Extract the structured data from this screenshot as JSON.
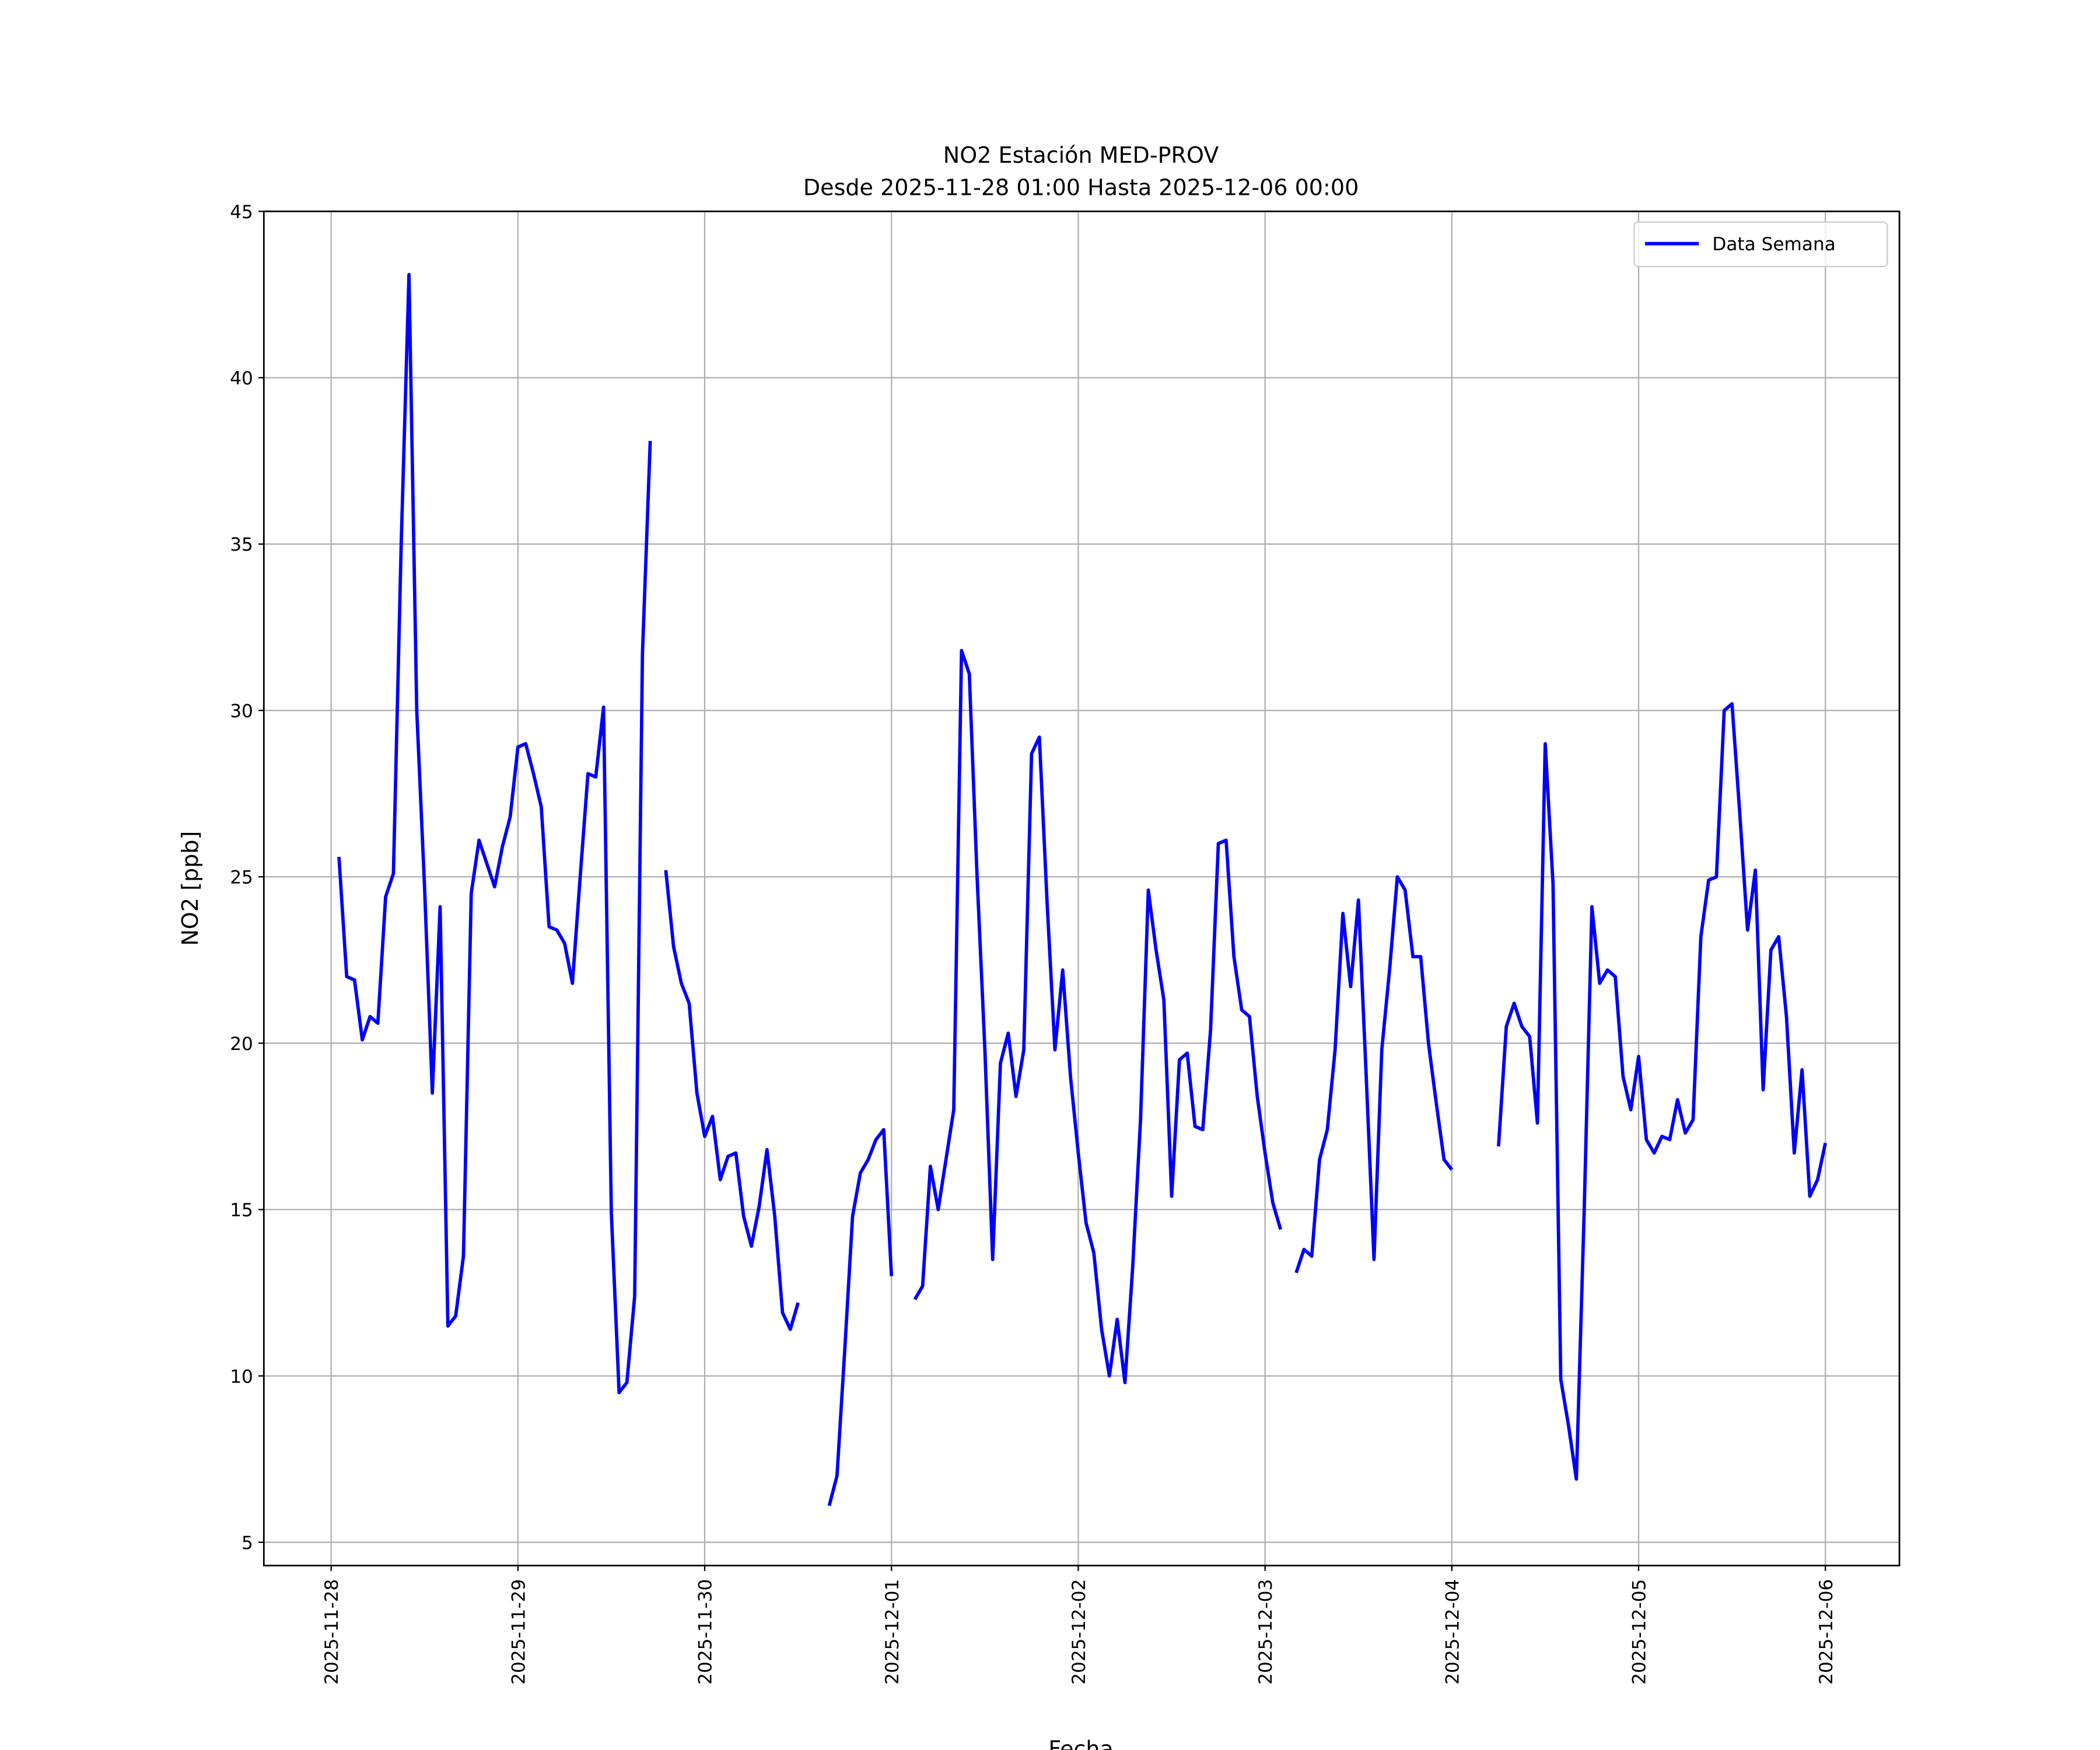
{
  "chart_data": {
    "type": "line",
    "title": [
      "NO2 Estación MED-PROV",
      "Desde 2025-11-28 01:00 Hasta 2025-12-06 00:00"
    ],
    "xlabel": "Fecha",
    "ylabel": "NO2 [ppb]",
    "ylim": [
      4.3,
      45
    ],
    "xlim": [
      "2025-11-27 20:00",
      "2025-12-06 13:00"
    ],
    "yticks": [
      5,
      10,
      15,
      20,
      25,
      30,
      35,
      40,
      45
    ],
    "xticks": [
      "2025-11-28",
      "2025-11-29",
      "2025-11-30",
      "2025-12-01",
      "2025-12-02",
      "2025-12-03",
      "2025-12-04",
      "2025-12-05",
      "2025-12-06"
    ],
    "grid": true,
    "legend_position": "upper-right",
    "x_start": "2025-11-28 01:00",
    "x_frequency": "hourly",
    "series": [
      {
        "name": "Data Semana",
        "color": "#0000ff",
        "values": [
          25.6,
          22.0,
          21.9,
          20.1,
          20.8,
          20.6,
          24.4,
          25.1,
          35.0,
          43.1,
          30.0,
          24.7,
          18.5,
          24.1,
          11.5,
          11.8,
          13.6,
          24.5,
          26.1,
          25.4,
          24.7,
          25.9,
          26.8,
          28.9,
          29.0,
          28.1,
          27.1,
          23.5,
          23.4,
          23.0,
          21.8,
          25.0,
          28.1,
          28.0,
          30.1,
          14.9,
          9.5,
          9.8,
          12.4,
          31.7,
          38.1,
          null,
          25.2,
          22.9,
          21.8,
          21.2,
          18.5,
          17.2,
          17.8,
          15.9,
          16.6,
          16.7,
          14.8,
          13.9,
          15.1,
          16.8,
          14.8,
          11.9,
          11.4,
          12.2,
          null,
          null,
          null,
          6.1,
          7.0,
          10.8,
          14.8,
          16.1,
          16.5,
          17.1,
          17.4,
          13.0,
          null,
          null,
          12.3,
          12.7,
          16.3,
          15.0,
          16.5,
          18.0,
          31.8,
          31.1,
          25.0,
          19.8,
          13.5,
          19.4,
          20.3,
          18.4,
          19.8,
          28.7,
          29.2,
          24.2,
          19.8,
          22.2,
          19.0,
          16.7,
          14.6,
          13.7,
          11.4,
          10.0,
          11.7,
          9.8,
          13.3,
          17.7,
          24.6,
          22.8,
          21.3,
          15.4,
          19.5,
          19.7,
          17.5,
          17.4,
          20.4,
          26.0,
          26.1,
          22.6,
          21.0,
          20.8,
          18.4,
          16.7,
          15.2,
          14.4,
          null,
          13.1,
          13.8,
          13.6,
          16.5,
          17.4,
          19.8,
          23.9,
          21.7,
          24.3,
          19.0,
          13.5,
          19.8,
          22.2,
          25.0,
          24.6,
          22.6,
          22.6,
          20.0,
          18.2,
          16.5,
          16.2,
          null,
          null,
          null,
          null,
          null,
          16.9,
          20.5,
          21.2,
          20.5,
          20.2,
          17.6,
          29.0,
          24.8,
          9.9,
          8.5,
          6.9,
          14.9,
          24.1,
          21.8,
          22.2,
          22.0,
          19.0,
          18.0,
          19.6,
          17.1,
          16.7,
          17.2,
          17.1,
          18.3,
          17.3,
          17.7,
          23.2,
          24.9,
          25.0,
          30.0,
          30.2,
          26.9,
          23.4,
          25.2,
          18.6,
          22.8,
          23.2,
          20.8,
          16.7,
          19.2,
          15.4,
          15.9,
          17.0
        ]
      }
    ]
  }
}
